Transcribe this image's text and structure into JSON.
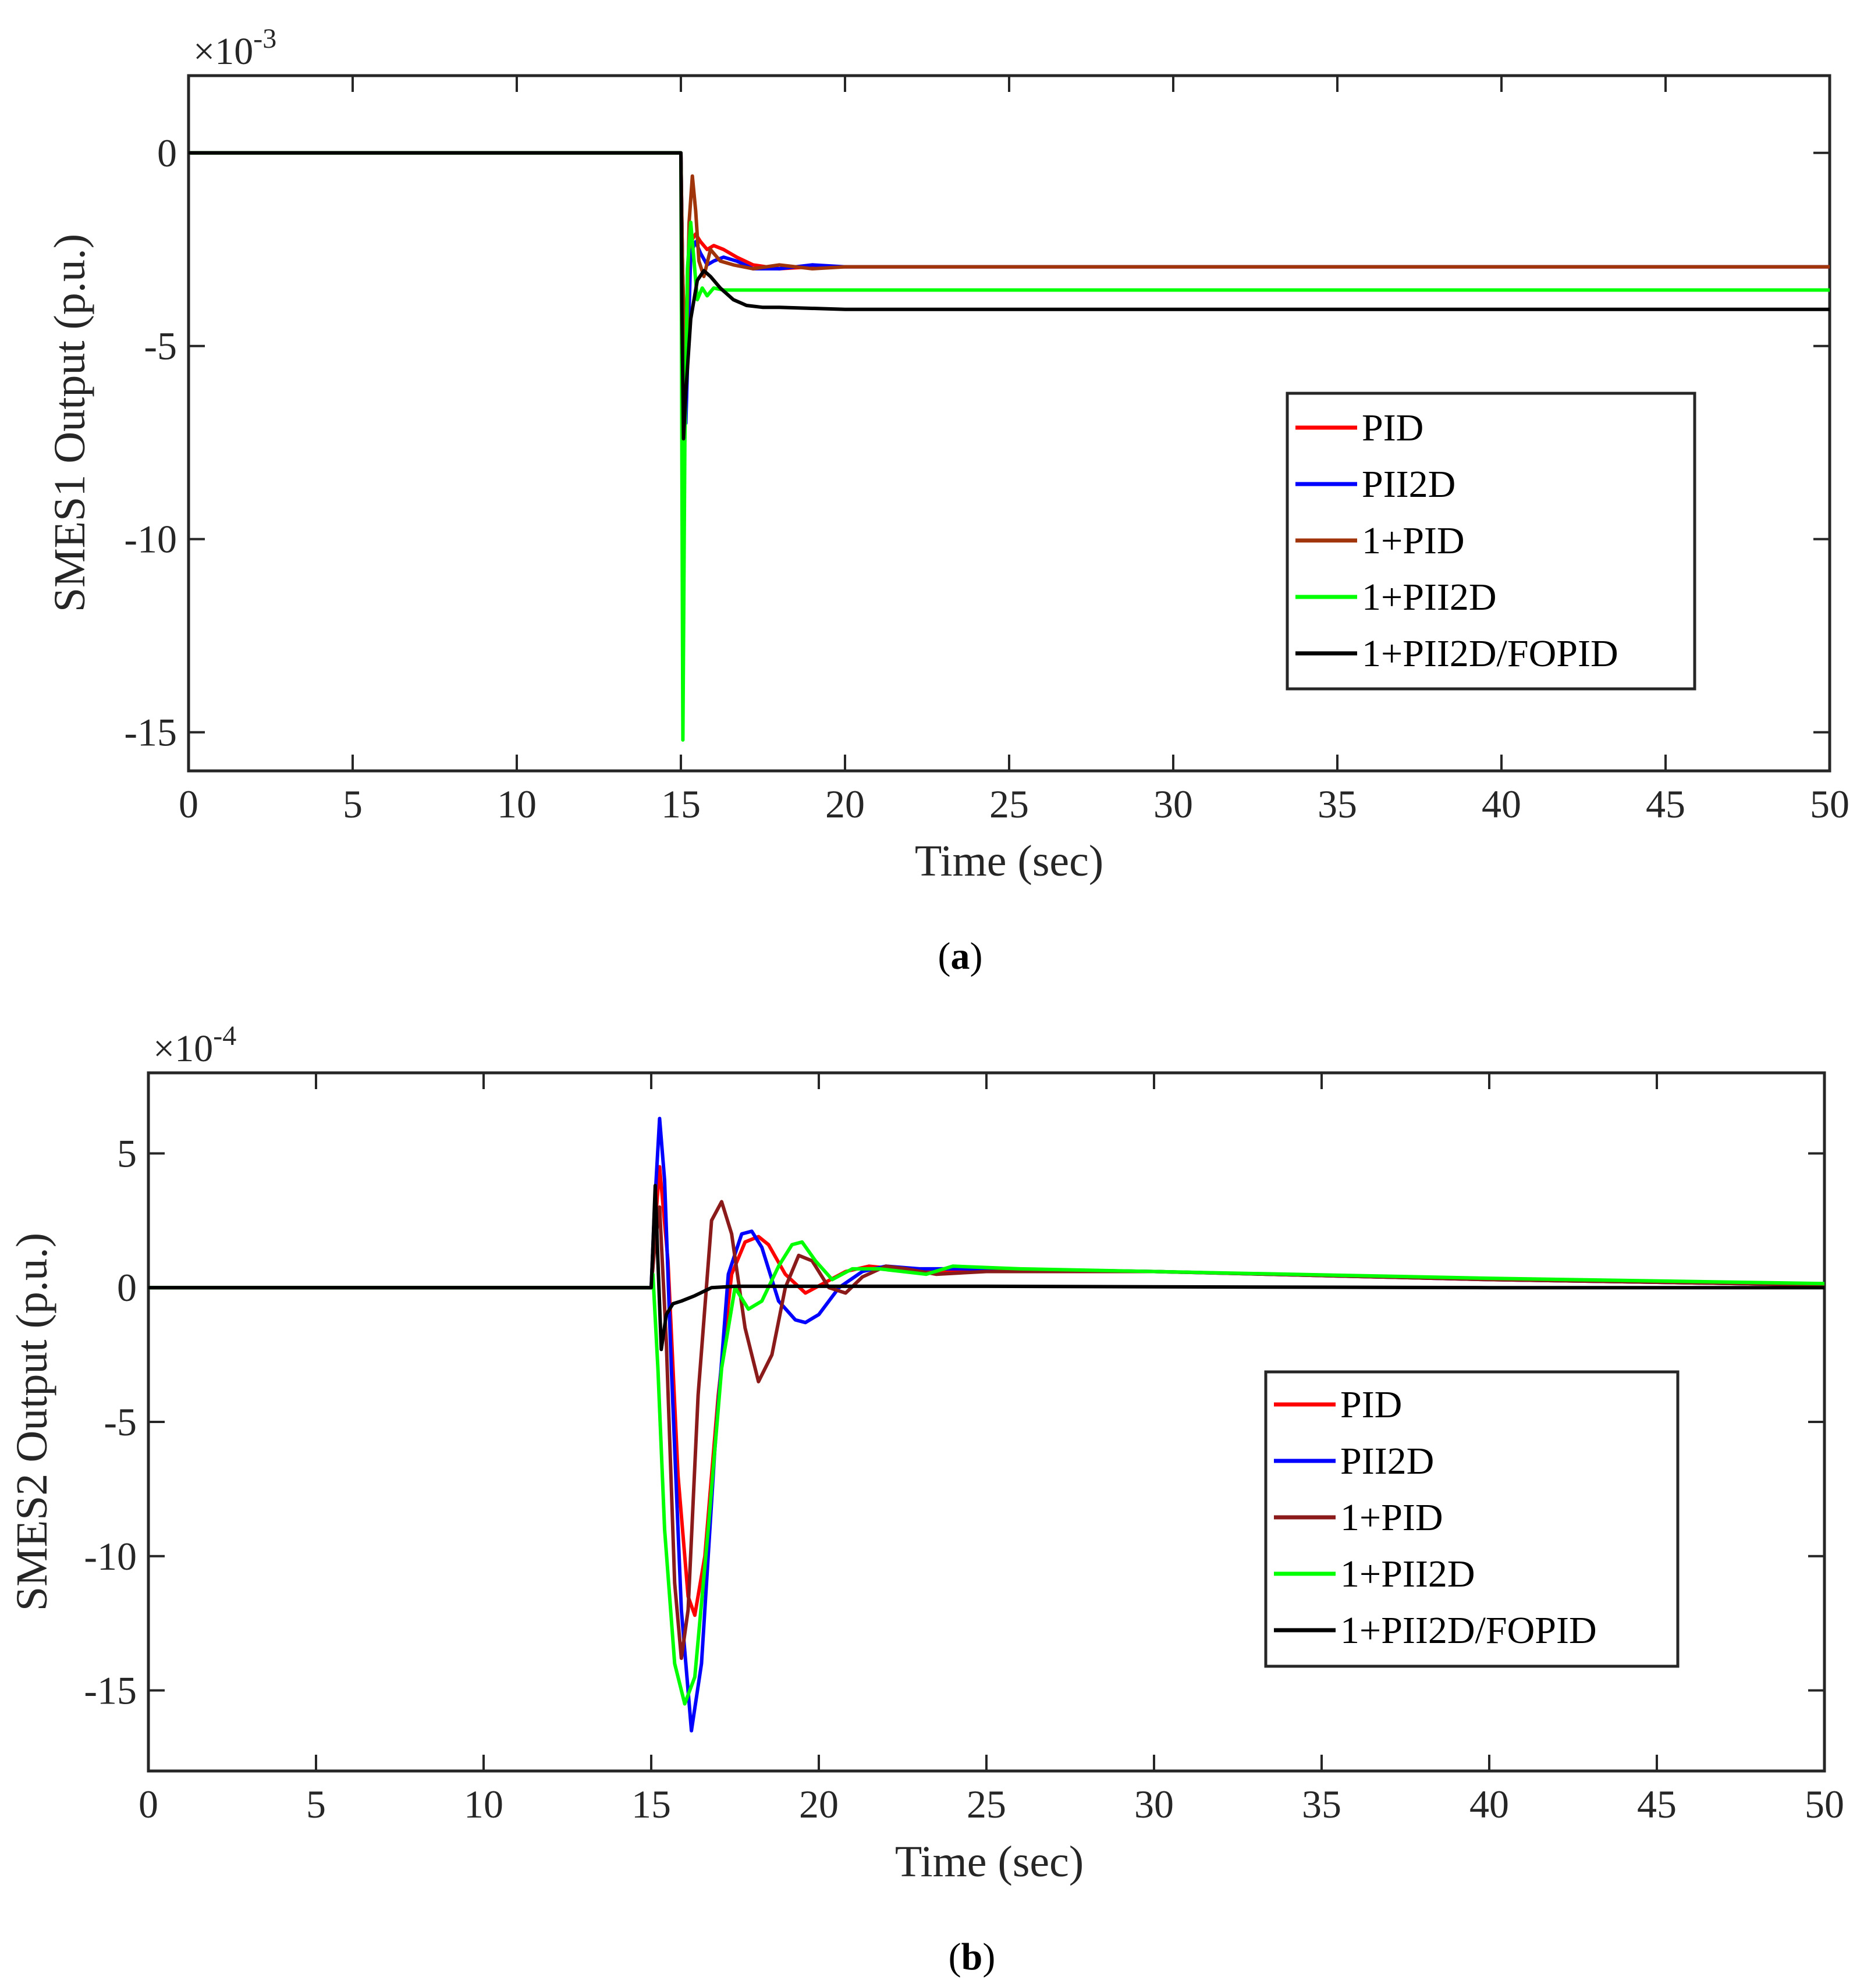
{
  "chart_data": [
    {
      "type": "line",
      "panel_label": "a",
      "xlabel": "Time (sec)",
      "ylabel": "SMES1 Output (p.u.)",
      "exponent_label": "×10",
      "exponent_power": "-3",
      "xlim": [
        0,
        50
      ],
      "ylim": [
        -16,
        2
      ],
      "xticks": [
        0,
        5,
        10,
        15,
        20,
        25,
        30,
        35,
        40,
        45,
        50
      ],
      "yticks": [
        0,
        -5,
        -10,
        -15
      ],
      "ytick_labels": [
        "0",
        "-5",
        "-10",
        "-15"
      ],
      "grid": false,
      "legend_position": "center-right",
      "series": [
        {
          "name": "PID",
          "color": "#ff0000",
          "x": [
            0,
            15,
            15.05,
            15.15,
            15.3,
            15.45,
            15.6,
            15.8,
            16.0,
            16.3,
            16.7,
            17.2,
            18,
            19,
            20,
            25,
            30,
            40,
            50
          ],
          "y": [
            0,
            0,
            -3.0,
            -6.0,
            -2.3,
            -2.1,
            -2.3,
            -2.5,
            -2.4,
            -2.5,
            -2.7,
            -2.9,
            -3.0,
            -2.95,
            -2.95,
            -2.95,
            -2.95,
            -2.95,
            -2.95
          ]
        },
        {
          "name": "PII2D",
          "color": "#0000ff",
          "x": [
            0,
            15,
            15.05,
            15.15,
            15.3,
            15.45,
            15.6,
            15.8,
            16.0,
            16.3,
            16.7,
            17.2,
            18,
            19,
            20,
            25,
            30,
            40,
            50
          ],
          "y": [
            0,
            0,
            -3.0,
            -7.0,
            -2.6,
            -2.3,
            -2.6,
            -2.9,
            -2.8,
            -2.7,
            -2.8,
            -3.0,
            -3.0,
            -2.9,
            -2.95,
            -2.95,
            -2.95,
            -2.95,
            -2.95
          ]
        },
        {
          "name": "1+PID",
          "color": "#a0340a",
          "x": [
            0,
            15,
            15.05,
            15.15,
            15.25,
            15.35,
            15.45,
            15.55,
            15.7,
            15.9,
            16.2,
            16.6,
            17.2,
            18,
            19,
            20,
            25,
            30,
            40,
            50
          ],
          "y": [
            0,
            0,
            -3.0,
            -6.0,
            -1.8,
            -0.6,
            -1.5,
            -2.8,
            -3.2,
            -2.5,
            -2.8,
            -2.9,
            -3.0,
            -2.9,
            -3.0,
            -2.95,
            -2.95,
            -2.95,
            -2.95,
            -2.95
          ]
        },
        {
          "name": "1+PII2D",
          "color": "#00ff00",
          "x": [
            0,
            15,
            15.03,
            15.06,
            15.12,
            15.2,
            15.3,
            15.4,
            15.5,
            15.65,
            15.8,
            16.0,
            16.3,
            17,
            18,
            20,
            25,
            30,
            40,
            50
          ],
          "y": [
            0,
            0,
            -8.0,
            -15.2,
            -7.5,
            -3.0,
            -1.8,
            -2.8,
            -3.8,
            -3.5,
            -3.7,
            -3.5,
            -3.55,
            -3.55,
            -3.55,
            -3.55,
            -3.55,
            -3.55,
            -3.55,
            -3.55
          ]
        },
        {
          "name": "1+PII2D/FOPID",
          "color": "#000000",
          "x": [
            0,
            15,
            15.03,
            15.08,
            15.15,
            15.3,
            15.5,
            15.7,
            15.9,
            16.2,
            16.6,
            17.0,
            17.5,
            18,
            20,
            25,
            30,
            40,
            50
          ],
          "y": [
            0,
            0,
            -4.0,
            -7.4,
            -6.2,
            -4.3,
            -3.3,
            -3.05,
            -3.2,
            -3.5,
            -3.8,
            -3.95,
            -4.0,
            -4.0,
            -4.05,
            -4.05,
            -4.05,
            -4.05,
            -4.05
          ]
        }
      ]
    },
    {
      "type": "line",
      "panel_label": "b",
      "xlabel": "Time (sec)",
      "ylabel": "SMES2 Output (p.u.)",
      "exponent_label": "×10",
      "exponent_power": "-4",
      "xlim": [
        0,
        50
      ],
      "ylim": [
        -18,
        8
      ],
      "xticks": [
        0,
        5,
        10,
        15,
        20,
        25,
        30,
        35,
        40,
        45,
        50
      ],
      "yticks": [
        5,
        0,
        -5,
        -10,
        -15
      ],
      "ytick_labels": [
        "5",
        "0",
        "-5",
        "-10",
        "-15"
      ],
      "grid": false,
      "legend_position": "bottom-right",
      "series": [
        {
          "name": "PID",
          "color": "#ff0000",
          "x": [
            0,
            15,
            15.1,
            15.25,
            15.5,
            15.8,
            16.1,
            16.3,
            16.6,
            17.0,
            17.4,
            17.8,
            18.2,
            18.5,
            19.0,
            19.6,
            20.2,
            20.8,
            21.5,
            22.3,
            23,
            25,
            30,
            40,
            50
          ],
          "y": [
            0,
            0,
            2.0,
            4.5,
            1.0,
            -7.0,
            -11.5,
            -12.2,
            -10.0,
            -4.0,
            0.5,
            1.7,
            1.9,
            1.6,
            0.5,
            -0.2,
            0.2,
            0.6,
            0.8,
            0.7,
            0.6,
            0.7,
            0.6,
            0.3,
            0.1
          ]
        },
        {
          "name": "PII2D",
          "color": "#0000ff",
          "x": [
            0,
            15,
            15.1,
            15.25,
            15.4,
            15.6,
            15.9,
            16.2,
            16.5,
            16.9,
            17.3,
            17.7,
            18.0,
            18.3,
            18.8,
            19.3,
            19.6,
            20.0,
            20.6,
            21.3,
            22.0,
            23,
            25,
            30,
            40,
            50
          ],
          "y": [
            0,
            0,
            3.0,
            6.3,
            4.0,
            -3.0,
            -12.0,
            -16.5,
            -14.0,
            -6.0,
            0.5,
            2.0,
            2.1,
            1.5,
            -0.5,
            -1.2,
            -1.3,
            -1.0,
            0.0,
            0.6,
            0.8,
            0.7,
            0.7,
            0.6,
            0.3,
            0.1
          ]
        },
        {
          "name": "1+PID",
          "color": "#8b1a1a",
          "x": [
            0,
            15,
            15.1,
            15.25,
            15.45,
            15.7,
            15.9,
            16.1,
            16.4,
            16.8,
            17.1,
            17.4,
            17.8,
            18.2,
            18.6,
            19.0,
            19.4,
            19.8,
            20.3,
            20.8,
            21.3,
            22,
            22.6,
            23.5,
            25,
            30,
            40,
            50
          ],
          "y": [
            0,
            0,
            1.5,
            3.0,
            -2.0,
            -11.0,
            -13.8,
            -12.0,
            -4.0,
            2.5,
            3.2,
            2.0,
            -1.5,
            -3.5,
            -2.5,
            0.0,
            1.2,
            1.0,
            0.0,
            -0.2,
            0.4,
            0.8,
            0.7,
            0.5,
            0.6,
            0.6,
            0.3,
            0.1
          ]
        },
        {
          "name": "1+PII2D",
          "color": "#00ff00",
          "x": [
            0,
            15,
            15.05,
            15.2,
            15.4,
            15.7,
            16.0,
            16.3,
            16.7,
            17.1,
            17.5,
            17.9,
            18.3,
            18.8,
            19.2,
            19.5,
            19.9,
            20.4,
            21.0,
            21.8,
            22.5,
            23.2,
            24,
            26,
            30,
            40,
            50
          ],
          "y": [
            0,
            0,
            0.5,
            -3.0,
            -9.0,
            -14.0,
            -15.5,
            -14.5,
            -9.0,
            -3.0,
            0.0,
            -0.8,
            -0.5,
            0.8,
            1.6,
            1.7,
            1.0,
            0.3,
            0.7,
            0.7,
            0.6,
            0.5,
            0.8,
            0.7,
            0.6,
            0.35,
            0.15
          ]
        },
        {
          "name": "1+PII2D/FOPID",
          "color": "#000000",
          "x": [
            0,
            15,
            15.05,
            15.12,
            15.2,
            15.3,
            15.45,
            15.65,
            15.9,
            16.3,
            16.8,
            17.5,
            18.5,
            20,
            25,
            30,
            40,
            50
          ],
          "y": [
            0,
            0,
            1.5,
            3.8,
            1.0,
            -2.3,
            -1.0,
            -0.6,
            -0.5,
            -0.3,
            0.0,
            0.05,
            0.05,
            0.05,
            0.05,
            0.03,
            0.0,
            0.0
          ]
        }
      ]
    }
  ]
}
